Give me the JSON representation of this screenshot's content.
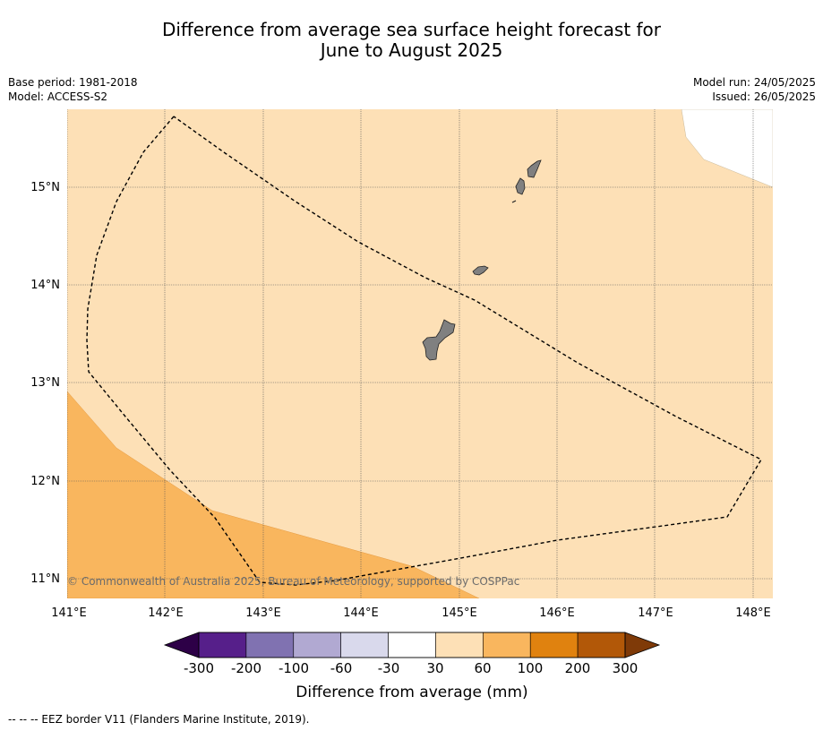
{
  "title_line1": "Difference from average sea surface height forecast for",
  "title_line2": "June to August 2025",
  "meta_left": {
    "base_period": "Base period: 1981-2018",
    "model": "Model: ACCESS-S2"
  },
  "meta_right": {
    "model_run": "Model run: 24/05/2025",
    "issued": "Issued: 26/05/2025"
  },
  "map": {
    "lat_labels": [
      "15°N",
      "14°N",
      "13°N",
      "12°N",
      "11°N"
    ],
    "lon_labels": [
      "141°E",
      "142°E",
      "143°E",
      "144°E",
      "145°E",
      "146°E",
      "147°E",
      "148°E"
    ],
    "copyright": "© Commonwealth of Australia 2025, Bureau of Meteorology, supported by COSPPac",
    "colors": {
      "band_30_60": "#fde0b6",
      "band_60_100": "#f9b65e",
      "land": "#808080",
      "background": "#ffffff"
    }
  },
  "colorbar": {
    "tick_labels": [
      "-300",
      "-200",
      "-100",
      "-60",
      "-30",
      "30",
      "60",
      "100",
      "200",
      "300"
    ],
    "colors": [
      "#561f8a",
      "#8072b1",
      "#b1a9d2",
      "#d9d9ec",
      "#ffffff",
      "#fde0b6",
      "#f9b65e",
      "#e0820f",
      "#b25808"
    ],
    "low_extend_color": "#2d0047",
    "high_extend_color": "#7f3a08",
    "label": "Difference from average (mm)"
  },
  "footer": "--  --  -- EEZ border V11 (Flanders Marine Institute, 2019)."
}
